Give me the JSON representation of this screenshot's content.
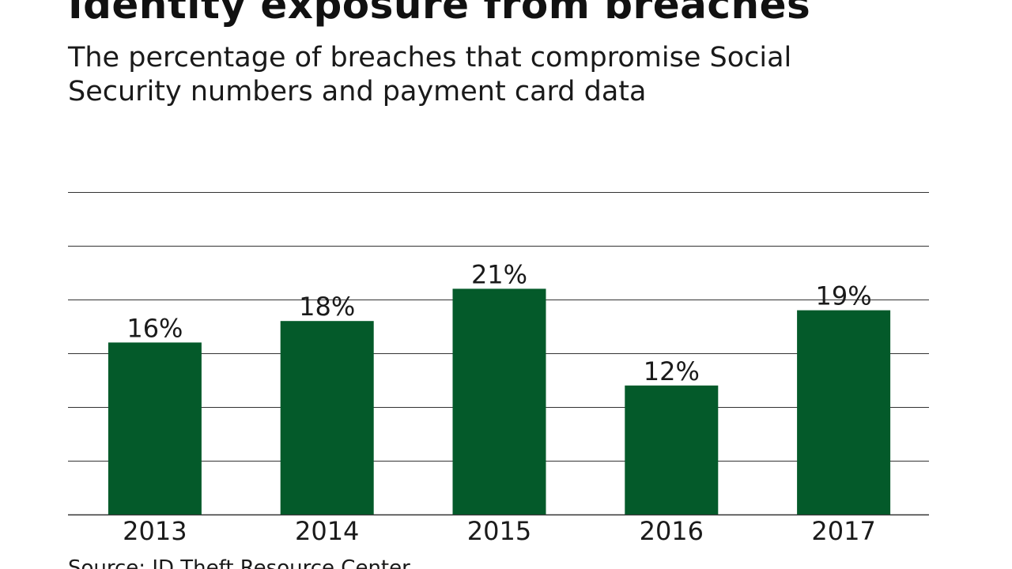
{
  "title": "Identity exposure from breaches",
  "subtitle": "The percentage of breaches that compromise Social Security numbers and payment card data",
  "source": "Source: ID Theft Resource Center",
  "colors": {
    "bar": "#045a2a",
    "gridline": "#333333",
    "text": "#1a1a1a"
  },
  "chart_data": {
    "type": "bar",
    "title": "Identity exposure from breaches",
    "subtitle": "The percentage of breaches that compromise Social Security numbers and payment card data",
    "categories": [
      "2013",
      "2014",
      "2015",
      "2016",
      "2017"
    ],
    "values": [
      16,
      18,
      21,
      12,
      19
    ],
    "data_labels": [
      "16%",
      "18%",
      "21%",
      "12%",
      "19%"
    ],
    "xlabel": "",
    "ylabel": "",
    "ylim": [
      0,
      30
    ],
    "gridline_step": 5,
    "grid": true,
    "legend": "none"
  }
}
